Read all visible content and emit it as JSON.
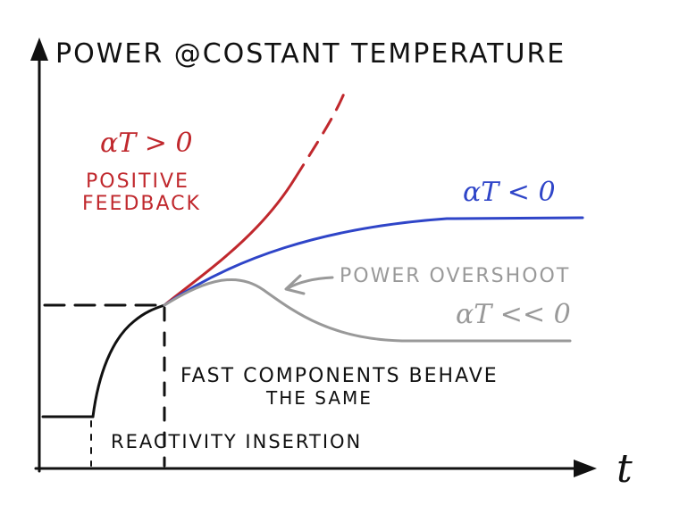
{
  "title": "Power @costant temperature",
  "x_axis_label": "t",
  "colors": {
    "ink": "#111111",
    "red": "#c0282d",
    "blue": "#2f45c8",
    "gray": "#999999"
  },
  "labels": {
    "positive_alpha": "αT > 0",
    "positive_feedback_line1": "POSITIVE",
    "positive_feedback_line2": "FEEDBACK",
    "negative_alpha": "αT < 0",
    "power_overshoot": "POWER OVERSHOOT",
    "strong_negative_alpha": "αT << 0",
    "fast_components_line1": "FAST COMPONENTS BEHAVE",
    "fast_components_line2": "THE SAME",
    "reactivity_insertion": "REACTIVITY INSERTION"
  }
}
